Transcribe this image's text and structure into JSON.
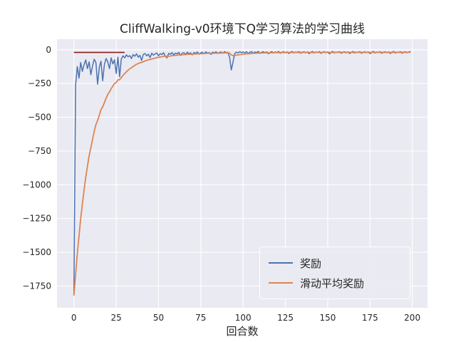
{
  "figure": {
    "title": "CliffWalking-v0环境下Q学习算法的学习曲线",
    "xlabel": "回合数"
  },
  "legend": {
    "items": [
      {
        "label": "奖励",
        "color": "#4c72b0"
      },
      {
        "label": "滑动平均奖励",
        "color": "#dd8452"
      }
    ]
  },
  "chart_data": {
    "type": "line",
    "title": "CliffWalking-v0环境下Q学习算法的学习曲线",
    "xlabel": "回合数",
    "ylabel": "",
    "xlim": [
      -10,
      209
    ],
    "ylim": [
      -1911,
      78
    ],
    "x_ticks": [
      0,
      25,
      50,
      75,
      100,
      125,
      150,
      175,
      200
    ],
    "y_ticks": [
      0,
      -250,
      -500,
      -750,
      -1000,
      -1250,
      -1500,
      -1750
    ],
    "grid": true,
    "legend_position": "lower right",
    "background": "#eaeaf2",
    "grid_color": "#ffffff",
    "series": [
      {
        "name": "奖励",
        "color": "#4c72b0",
        "x_start": 0,
        "x_step": 1,
        "values": [
          -1820,
          -264,
          -125,
          -210,
          -95,
          -160,
          -110,
          -75,
          -140,
          -90,
          -185,
          -120,
          -70,
          -95,
          -255,
          -130,
          -85,
          -230,
          -110,
          -65,
          -90,
          -140,
          -60,
          -105,
          -75,
          -175,
          -55,
          -200,
          -70,
          -45,
          -60,
          -38,
          -52,
          -44,
          -65,
          -36,
          -48,
          -30,
          -55,
          -42,
          -80,
          -35,
          -28,
          -46,
          -33,
          -58,
          -26,
          -40,
          -31,
          -24,
          -45,
          -29,
          -36,
          -22,
          -48,
          -60,
          -27,
          -34,
          -21,
          -39,
          -25,
          -31,
          -19,
          -43,
          -26,
          -22,
          -35,
          -18,
          -29,
          -24,
          -38,
          -20,
          -27,
          -17,
          -33,
          -23,
          -19,
          -30,
          -16,
          -25,
          -21,
          -35,
          -18,
          -24,
          -15,
          -28,
          -20,
          -17,
          -26,
          -14,
          -22,
          -19,
          -55,
          -150,
          -95,
          -30,
          -18,
          -24,
          -15,
          -21,
          -17,
          -23,
          -15,
          -28,
          -19,
          -14,
          -25,
          -17,
          -21,
          -13,
          -27,
          -18,
          -15,
          -23,
          -16,
          -30,
          -19,
          -14,
          -24,
          -17,
          -21,
          -13,
          -26,
          -18,
          -15,
          -22,
          -16,
          -28,
          -19,
          -13,
          -24,
          -17,
          -20,
          -14,
          -26,
          -18,
          -15,
          -23,
          -16,
          -29,
          -19,
          -13,
          -25,
          -17,
          -21,
          -14,
          -27,
          -18,
          -15,
          -22,
          -16,
          -30,
          -19,
          -13,
          -24,
          -17,
          -20,
          -14,
          -26,
          -18,
          -15,
          -23,
          -16,
          -28,
          -19,
          -13,
          -25,
          -17,
          -21,
          -14,
          -26,
          -18,
          -15,
          -22,
          -16,
          -29,
          -19,
          -13,
          -24,
          -17,
          -20,
          -14,
          -27,
          -18,
          -15,
          -23,
          -16,
          -28,
          -19,
          -13,
          -25,
          -17,
          -21,
          -14,
          -26,
          -18,
          -15,
          -22,
          -16,
          -13
        ]
      },
      {
        "name": "滑动平均奖励",
        "color": "#dd8452",
        "derived": "exponential_moving_average_of_series_0",
        "alpha": 0.1
      }
    ],
    "annotations": [
      {
        "type": "segment",
        "x1": 0,
        "x2": 30,
        "y": -20,
        "color": "#8b1d1d"
      }
    ]
  }
}
